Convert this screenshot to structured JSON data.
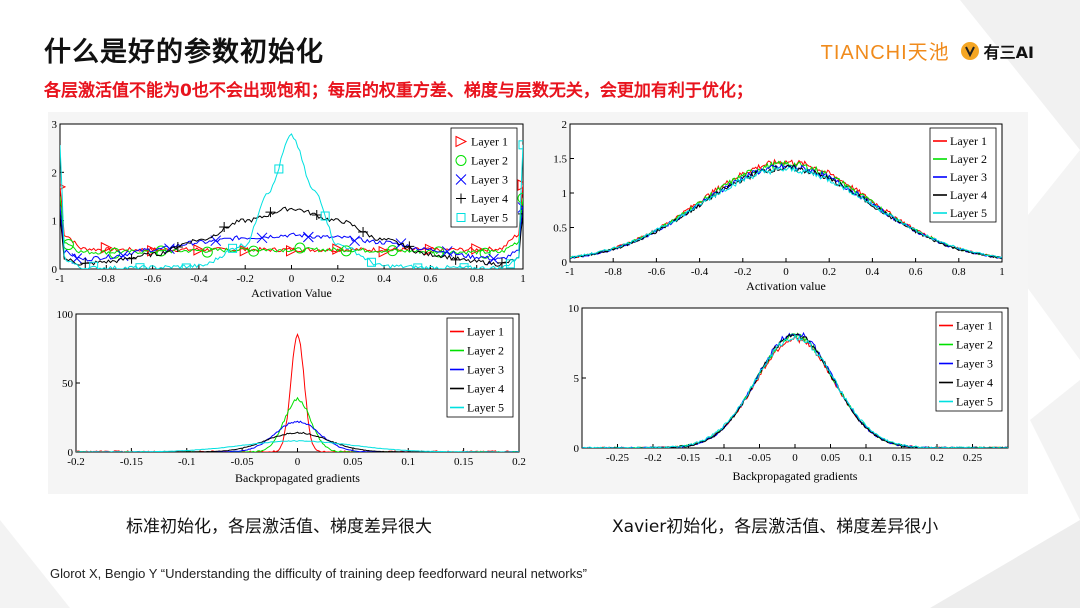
{
  "slide": {
    "title": "什么是好的参数初始化",
    "subtitle": "各层激活值不能为0也不会出现饱和；每层的权重方差、梯度与层数无关，会更加有利于优化；",
    "logo_tianchi": "TIANCHI天池",
    "logo_youweiai": "有三AI",
    "caption_left": "标准初始化，各层激活值、梯度差异很大",
    "caption_right": "Xavier初始化，各层激活值、梯度差异很小",
    "citation": "Glorot X, Bengio Y “Understanding the difficulty of training deep feedforward neural networks”"
  },
  "colors": {
    "accent_red": "#e8131d",
    "tianchi_orange": "#f08b1c",
    "layer_colors": [
      "#ff0000",
      "#00e000",
      "#0000ff",
      "#000000",
      "#00e0e0"
    ]
  },
  "chart_data": [
    {
      "id": "std-activation",
      "type": "line",
      "xlabel": "Activation Value",
      "ylabel": "",
      "xlim": [
        -1,
        1
      ],
      "ylim": [
        0,
        3
      ],
      "xticks": [
        "-1",
        "-0.8",
        "-0.6",
        "-0.4",
        "-0.2",
        "0",
        "0.2",
        "0.4",
        "0.6",
        "0.8",
        "1"
      ],
      "yticks": [
        "0",
        "1",
        "2",
        "3"
      ],
      "legend_position": "top-right",
      "series": [
        {
          "name": "Layer 1",
          "marker": "triangle",
          "x": [
            -1,
            -0.98,
            -0.9,
            -0.8,
            -0.6,
            -0.4,
            -0.2,
            0,
            0.2,
            0.4,
            0.6,
            0.8,
            0.9,
            0.98,
            1
          ],
          "values": [
            1.7,
            0.7,
            0.42,
            0.4,
            0.4,
            0.4,
            0.4,
            0.4,
            0.4,
            0.4,
            0.4,
            0.4,
            0.42,
            0.7,
            1.7
          ]
        },
        {
          "name": "Layer 2",
          "marker": "circle",
          "x": [
            -1,
            -0.98,
            -0.9,
            -0.8,
            -0.6,
            -0.4,
            -0.2,
            0,
            0.2,
            0.4,
            0.6,
            0.8,
            0.9,
            0.98,
            1
          ],
          "values": [
            1.5,
            0.55,
            0.35,
            0.35,
            0.36,
            0.38,
            0.4,
            0.4,
            0.4,
            0.38,
            0.36,
            0.35,
            0.35,
            0.55,
            1.5
          ]
        },
        {
          "name": "Layer 3",
          "marker": "x",
          "x": [
            -1,
            -0.98,
            -0.9,
            -0.8,
            -0.6,
            -0.4,
            -0.2,
            0,
            0.2,
            0.4,
            0.6,
            0.8,
            0.9,
            0.98,
            1
          ],
          "values": [
            1.3,
            0.35,
            0.2,
            0.25,
            0.4,
            0.55,
            0.65,
            0.7,
            0.65,
            0.55,
            0.4,
            0.25,
            0.2,
            0.35,
            1.3
          ]
        },
        {
          "name": "Layer 4",
          "marker": "plus",
          "x": [
            -1,
            -0.98,
            -0.9,
            -0.8,
            -0.6,
            -0.4,
            -0.2,
            0,
            0.2,
            0.4,
            0.6,
            0.8,
            0.9,
            0.98,
            1
          ],
          "values": [
            1.1,
            0.2,
            0.1,
            0.15,
            0.3,
            0.6,
            1.0,
            1.25,
            1.0,
            0.6,
            0.3,
            0.15,
            0.1,
            0.2,
            1.1
          ]
        },
        {
          "name": "Layer 5",
          "marker": "square",
          "x": [
            -1,
            -0.98,
            -0.9,
            -0.8,
            -0.6,
            -0.4,
            -0.2,
            -0.1,
            0,
            0.1,
            0.2,
            0.4,
            0.6,
            0.8,
            0.9,
            0.98,
            1
          ],
          "values": [
            2.6,
            0.2,
            0.02,
            0.02,
            0.03,
            0.06,
            0.5,
            1.6,
            2.75,
            1.6,
            0.5,
            0.06,
            0.03,
            0.02,
            0.02,
            0.2,
            2.6
          ]
        }
      ]
    },
    {
      "id": "xavier-activation",
      "type": "line",
      "xlabel": "Activation value",
      "ylabel": "",
      "xlim": [
        -1,
        1
      ],
      "ylim": [
        0,
        2
      ],
      "xticks": [
        "-1",
        "-0.8",
        "-0.6",
        "-0.4",
        "-0.2",
        "0",
        "0.2",
        "0.4",
        "0.6",
        "0.8",
        "1"
      ],
      "yticks": [
        "0",
        "0.5",
        "1",
        "1.5",
        "2"
      ],
      "legend_position": "top-right",
      "series": [
        {
          "name": "Layer 1",
          "peak": 1.45,
          "sigma": 0.4
        },
        {
          "name": "Layer 2",
          "peak": 1.42,
          "sigma": 0.4
        },
        {
          "name": "Layer 3",
          "peak": 1.38,
          "sigma": 0.4
        },
        {
          "name": "Layer 4",
          "peak": 1.36,
          "sigma": 0.4
        },
        {
          "name": "Layer 5",
          "peak": 1.34,
          "sigma": 0.41
        }
      ]
    },
    {
      "id": "std-gradients",
      "type": "line",
      "xlabel": "Backpropagated gradients",
      "ylabel": "",
      "xlim": [
        -0.2,
        0.2
      ],
      "ylim": [
        0,
        100
      ],
      "xticks": [
        "-0.2",
        "-0.15",
        "-0.1",
        "-0.05",
        "0",
        "0.05",
        "0.1",
        "0.15",
        "0.2"
      ],
      "yticks": [
        "0",
        "50",
        "100"
      ],
      "legend_position": "top-right",
      "series": [
        {
          "name": "Layer 1",
          "peak": 85,
          "sigma": 0.006
        },
        {
          "name": "Layer 2",
          "peak": 38,
          "sigma": 0.012
        },
        {
          "name": "Layer 3",
          "peak": 22,
          "sigma": 0.02
        },
        {
          "name": "Layer 4",
          "peak": 14,
          "sigma": 0.028
        },
        {
          "name": "Layer 5",
          "peak": 8,
          "sigma": 0.05
        }
      ]
    },
    {
      "id": "xavier-gradients",
      "type": "line",
      "xlabel": "Backpropagated gradients",
      "ylabel": "",
      "xlim": [
        -0.3,
        0.3
      ],
      "ylim": [
        0,
        10
      ],
      "xticks": [
        "-0.25",
        "-0.2",
        "-0.15",
        "-0.1",
        "-0.05",
        "0",
        "0.05",
        "0.1",
        "0.15",
        "0.2",
        "0.25"
      ],
      "yticks": [
        "0",
        "5",
        "10"
      ],
      "legend_position": "top-right",
      "series": [
        {
          "name": "Layer 1",
          "peak": 7.8,
          "sigma": 0.055
        },
        {
          "name": "Layer 2",
          "peak": 8.0,
          "sigma": 0.055
        },
        {
          "name": "Layer 3",
          "peak": 8.2,
          "sigma": 0.054
        },
        {
          "name": "Layer 4",
          "peak": 8.1,
          "sigma": 0.054
        },
        {
          "name": "Layer 5",
          "peak": 7.9,
          "sigma": 0.056
        }
      ]
    }
  ]
}
